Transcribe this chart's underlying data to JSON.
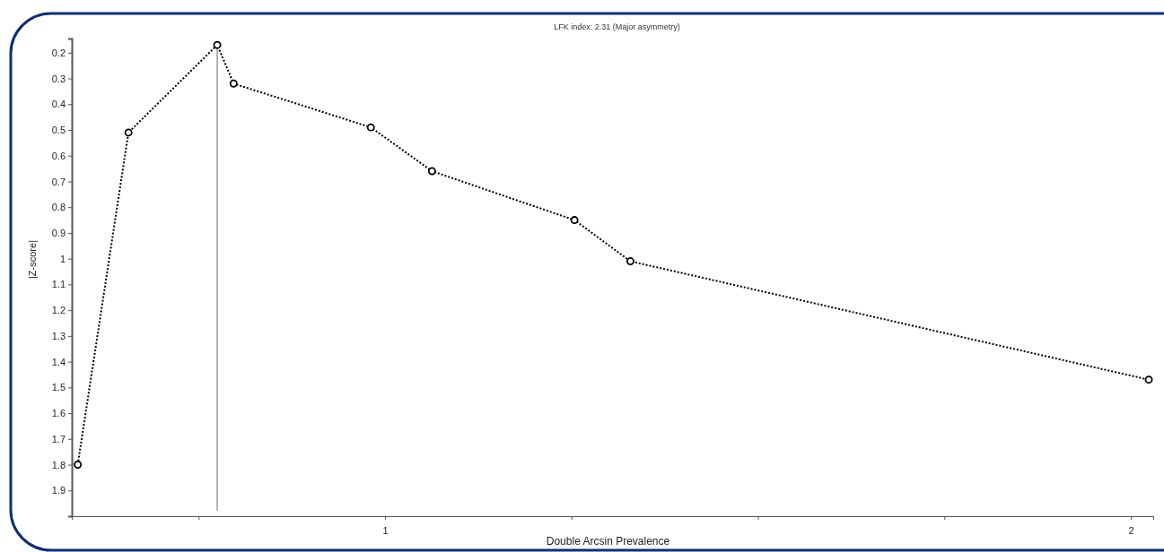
{
  "chart_data": {
    "type": "line",
    "title": "LFK index: 2.31 (Major asymmetry)",
    "xlabel": "Double Arcsin Prevalence",
    "ylabel": "|Z-score|",
    "x": [
      0.588,
      0.656,
      0.775,
      0.797,
      0.981,
      1.063,
      1.254,
      1.329,
      2.024
    ],
    "series": [
      {
        "color": "#000000",
        "values": [
          1.8,
          0.51,
          0.17,
          0.32,
          0.49,
          0.66,
          0.85,
          1.01,
          1.47
        ]
      }
    ],
    "xlim": [
      0.58,
      2.03
    ],
    "xticks": [
      {
        "value": 0.75,
        "label": null
      },
      1,
      {
        "value": 1.25,
        "label": null
      },
      {
        "value": 1.5,
        "label": null
      },
      {
        "value": 1.75,
        "label": null
      },
      2
    ],
    "ylim": [
      2.0,
      0.145
    ],
    "yticks": [
      0.2,
      0.3,
      0.4,
      0.5,
      0.6,
      0.7,
      0.8,
      0.9,
      1,
      1.1,
      1.2,
      1.3,
      1.4,
      1.5,
      1.6,
      1.7,
      1.8,
      1.9
    ],
    "ref_lines": [
      {
        "axis": "x",
        "value": 0.775,
        "color": "#808080"
      }
    ],
    "marker": "circle",
    "line_style": "dotted"
  }
}
